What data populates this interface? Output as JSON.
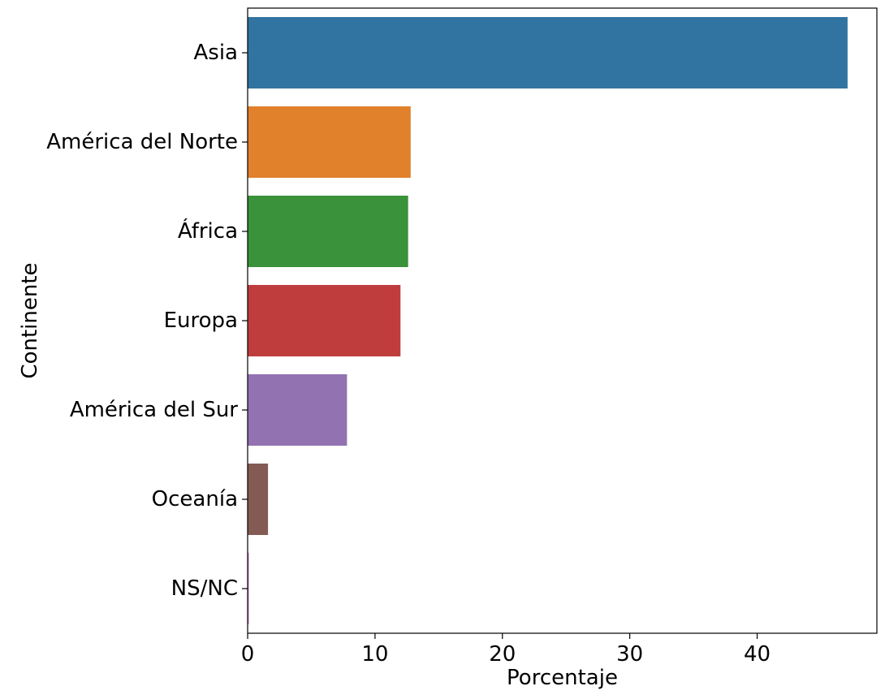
{
  "chart_data": {
    "type": "bar",
    "orientation": "horizontal",
    "title": "",
    "xlabel": "Porcentaje",
    "ylabel": "Continente",
    "xlim": [
      0,
      49.4
    ],
    "xticks": [
      0,
      10,
      20,
      30,
      40
    ],
    "grid": false,
    "categories": [
      "Asia",
      "América del Norte",
      "África",
      "Europa",
      "América del Sur",
      "Oceanía",
      "NS/NC"
    ],
    "values": [
      47.1,
      12.8,
      12.6,
      12.0,
      7.8,
      1.6,
      0.1
    ],
    "colors": [
      "#3274a1",
      "#e1812c",
      "#3a923a",
      "#c03d3e",
      "#9372b2",
      "#845b53",
      "#d684bd"
    ]
  }
}
